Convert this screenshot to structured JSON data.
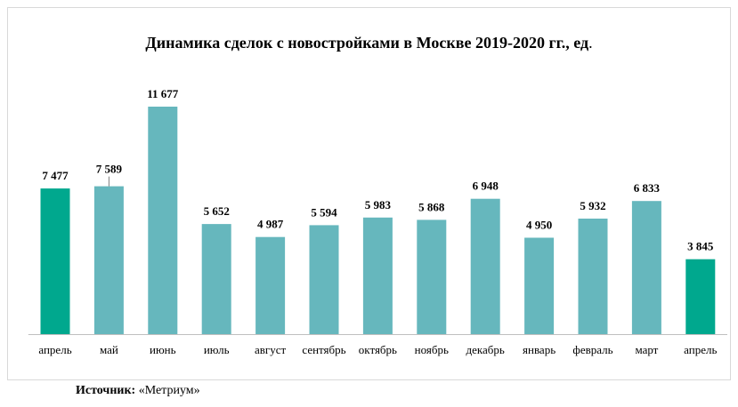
{
  "title_main": "Динамика сделок с новостройками в Москве 2019-2020 гг., ед",
  "title_unit_dot": ".",
  "source_label": "Источник:",
  "source_value": "«Метриум»",
  "colors": {
    "highlight": "#00a88e",
    "normal": "#66b7bd",
    "axis": "#bfbfbf",
    "label": "#000000"
  },
  "chart_data": {
    "type": "bar",
    "title": "Динамика сделок с новостройками в Москве 2019-2020 гг., ед.",
    "xlabel": "",
    "ylabel": "",
    "grid": false,
    "legend": "none",
    "categories": [
      "апрель",
      "май",
      "июнь",
      "июль",
      "август",
      "сентябрь",
      "октябрь",
      "ноябрь",
      "декабрь",
      "январь",
      "февраль",
      "март",
      "апрель"
    ],
    "values": [
      7477,
      7589,
      11677,
      5652,
      4987,
      5594,
      5983,
      5868,
      6948,
      4950,
      5932,
      6833,
      3845
    ],
    "value_labels": [
      "7 477",
      "7 589",
      "11 677",
      "5 652",
      "4 987",
      "5 594",
      "5 983",
      "5 868",
      "6 948",
      "4 950",
      "5 932",
      "6 833",
      "3 845"
    ],
    "highlight_indices": [
      0,
      12
    ],
    "ylim": [
      0,
      11677
    ]
  }
}
